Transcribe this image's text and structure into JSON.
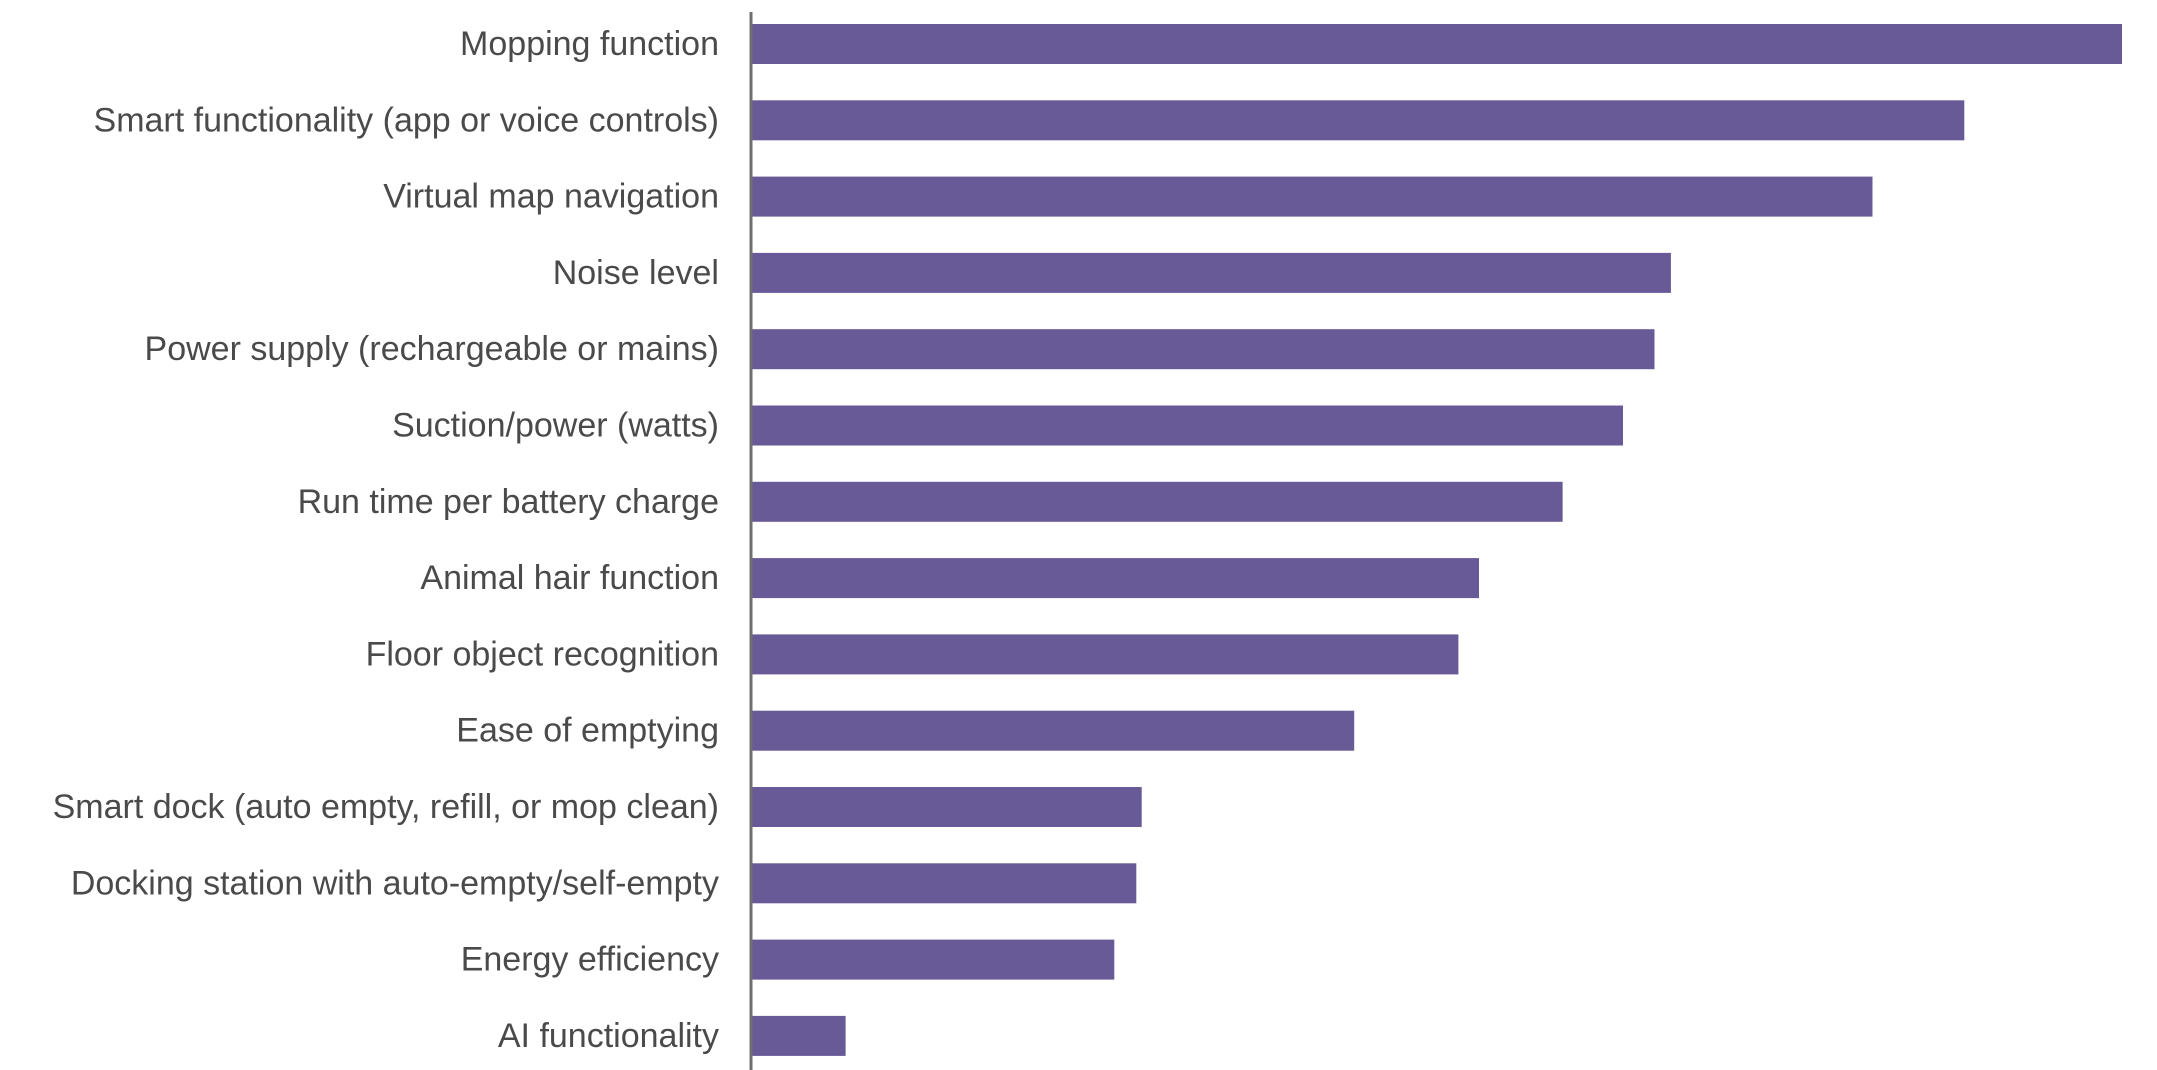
{
  "chart_data": {
    "type": "bar",
    "orientation": "horizontal",
    "title": "",
    "xlabel": "",
    "ylabel": "",
    "categories": [
      "Mopping function",
      "Smart functionality (app or voice controls)",
      "Virtual map navigation",
      "Noise level",
      "Power supply (rechargeable or mains)",
      "Suction/power (watts)",
      "Run time per battery charge",
      "Animal hair function",
      "Floor object recognition",
      "Ease of emptying",
      "Smart dock (auto empty, refill, or mop clean)",
      "Docking station with auto-empty/self-empty",
      "Energy efficiency",
      "AI functionality"
    ],
    "values": [
      100,
      88.5,
      81.8,
      67.1,
      65.9,
      63.6,
      59.2,
      53.1,
      51.6,
      44.0,
      28.5,
      28.1,
      26.5,
      6.9
    ],
    "xlim": [
      0,
      100
    ],
    "grid": false,
    "legend": "none",
    "value_labels": false,
    "bar_color": "#685a97",
    "axis_color": "#6f6f6f",
    "label_color": "#4a4a4a"
  }
}
